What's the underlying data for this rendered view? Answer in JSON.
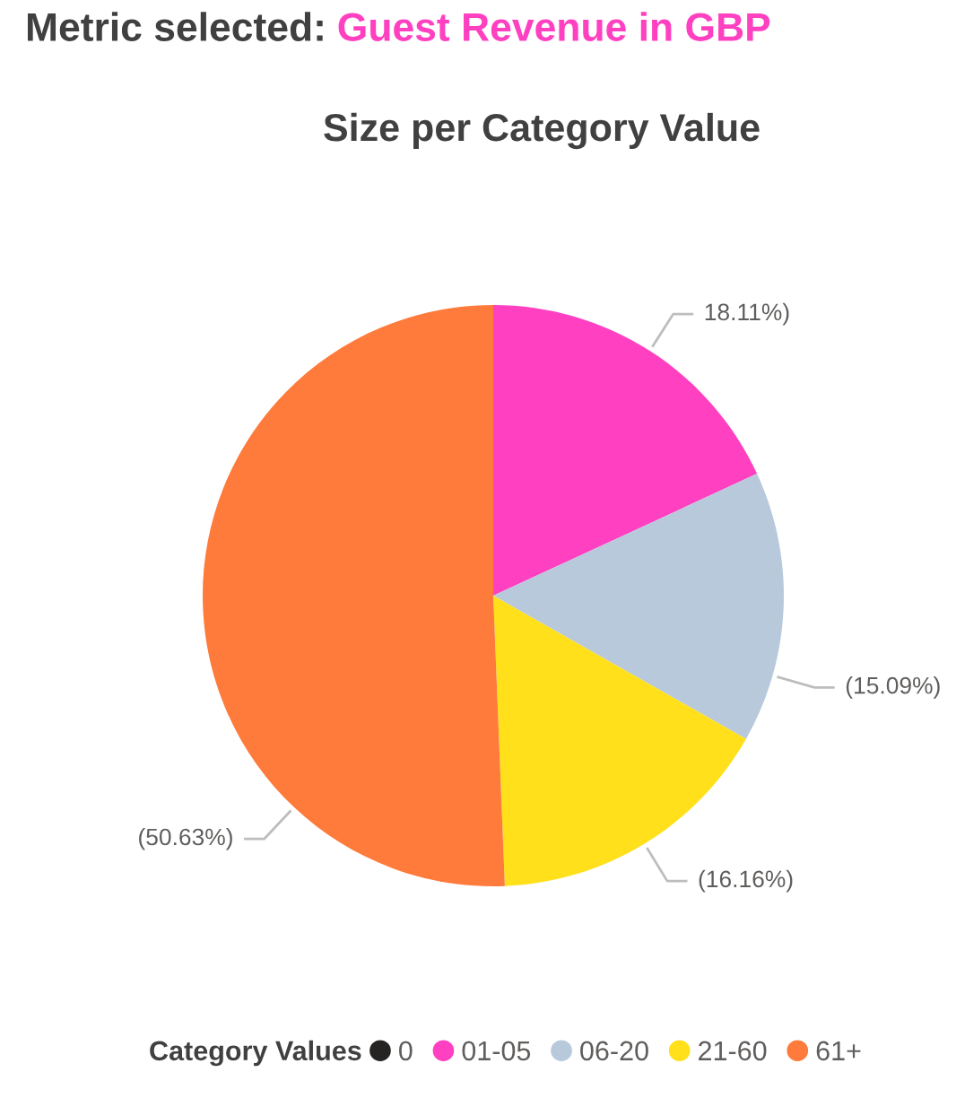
{
  "chart_data": {
    "type": "pie",
    "title": "Size per Category Value",
    "legend_title": "Category Values",
    "categories": [
      "0",
      "01-05",
      "06-20",
      "21-60",
      "61+"
    ],
    "values": [
      0,
      18.11,
      15.09,
      16.16,
      50.63
    ],
    "colors": [
      "#252423",
      "#ff41c1",
      "#b8c9dc",
      "#ffe01a",
      "#fe7b3b"
    ],
    "value_labels": [
      null,
      "18.11%)",
      "(15.09%)",
      "(16.16%)",
      "(50.63%)"
    ],
    "legend": "bottom",
    "annotations": [
      "Metric selected:",
      "Guest Revenue in GBP"
    ]
  }
}
